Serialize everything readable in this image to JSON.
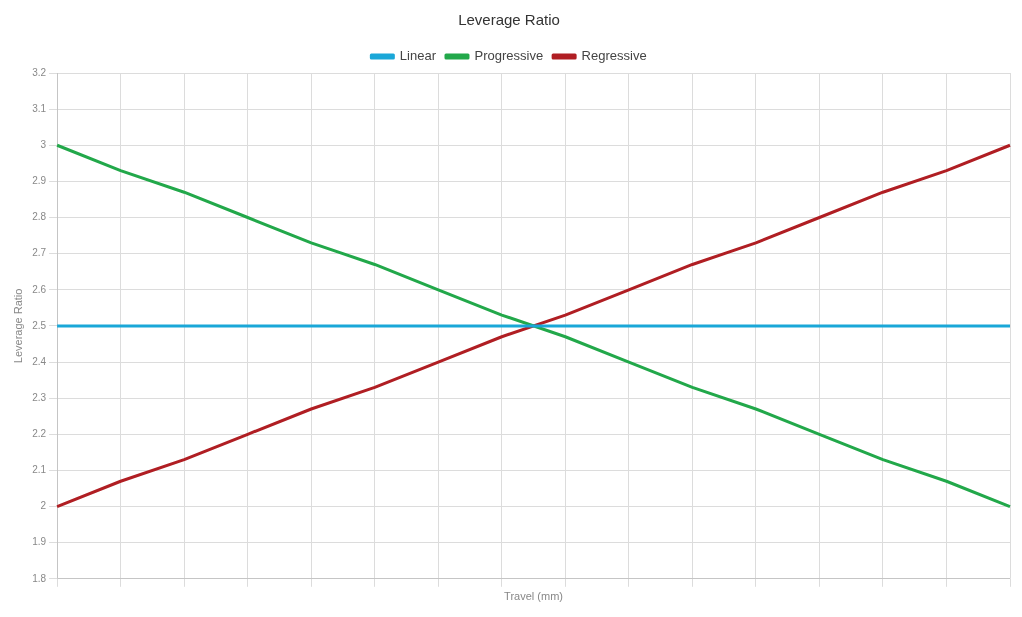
{
  "chart_data": {
    "type": "line",
    "title": "Leverage Ratio",
    "xlabel": "Travel (mm)",
    "ylabel": "Leverage Ratio",
    "categories": [
      null,
      null,
      null,
      null,
      null,
      null,
      null,
      null,
      null,
      null,
      null,
      null,
      null,
      null,
      null,
      null
    ],
    "series": [
      {
        "name": "Linear",
        "color": "#1aa7d8",
        "values": [
          2.5,
          2.5,
          2.5,
          2.5,
          2.5,
          2.5,
          2.5,
          2.5,
          2.5,
          2.5,
          2.5,
          2.5,
          2.5,
          2.5,
          2.5,
          2.5
        ]
      },
      {
        "name": "Progressive",
        "color": "#22a84a",
        "values": [
          3,
          2.93,
          2.87,
          2.8,
          2.73,
          2.67,
          2.6,
          2.53,
          2.47,
          2.4,
          2.33,
          2.27,
          2.2,
          2.13,
          2.07,
          2
        ]
      },
      {
        "name": "Regressive",
        "color": "#b01e23",
        "values": [
          2,
          2.07,
          2.13,
          2.2,
          2.27,
          2.33,
          2.4,
          2.47,
          2.53,
          2.6,
          2.67,
          2.73,
          2.8,
          2.87,
          2.93,
          3
        ]
      }
    ],
    "ylim": [
      1.8,
      3.2
    ],
    "yticks": [
      1.8,
      1.9,
      2,
      2.1,
      2.2,
      2.3,
      2.4,
      2.5,
      2.6,
      2.7,
      2.8,
      2.9,
      3,
      3.1,
      3.2
    ],
    "grid": true,
    "legend": "top",
    "marker": "none",
    "line_style": "solid",
    "tick_labels": "y"
  }
}
